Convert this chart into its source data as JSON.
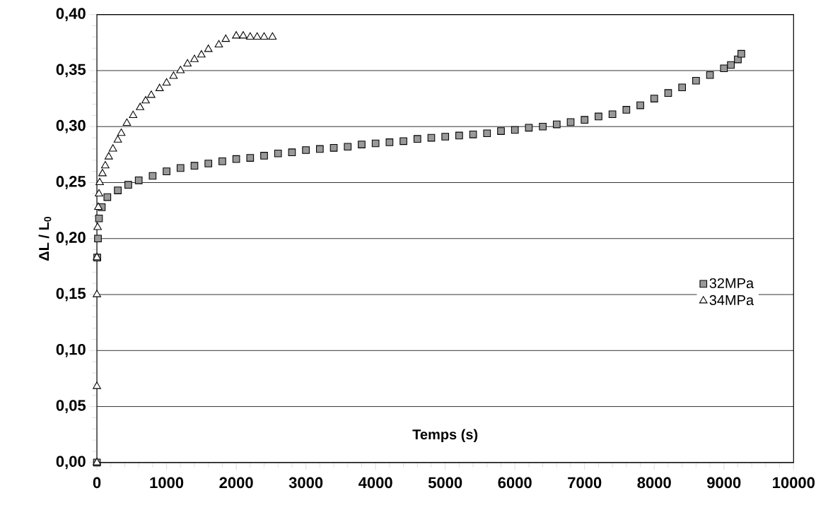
{
  "chart_data": {
    "type": "scatter",
    "xlabel": "Temps (s)",
    "ylabel": "ΔL / L$_{0}$",
    "xlim": [
      0,
      10000
    ],
    "xticks": [
      0,
      1000,
      2000,
      3000,
      4000,
      5000,
      6000,
      7000,
      8000,
      9000,
      10000
    ],
    "ylim": [
      0,
      0.4
    ],
    "yticks": [
      {
        "value": 0,
        "label": "0,00"
      },
      {
        "value": 0.05,
        "label": "0,05"
      },
      {
        "value": 0.1,
        "label": "0,10"
      },
      {
        "value": 0.15,
        "label": "0,15"
      },
      {
        "value": 0.2,
        "label": "0,20"
      },
      {
        "value": 0.25,
        "label": "0,25"
      },
      {
        "value": 0.3,
        "label": "0,30"
      },
      {
        "value": 0.35,
        "label": "0,35"
      },
      {
        "value": 0.4,
        "label": "0,40"
      }
    ],
    "grid": "y",
    "legend": "right",
    "series": [
      {
        "name": "32MPa",
        "color": "#999999",
        "marker": "square",
        "x": [
          0,
          5,
          15,
          30,
          70,
          150,
          300,
          450,
          600,
          800,
          1000,
          1200,
          1400,
          1600,
          1800,
          2000,
          2200,
          2400,
          2600,
          2800,
          3000,
          3200,
          3400,
          3600,
          3800,
          4000,
          4200,
          4400,
          4600,
          4800,
          5000,
          5200,
          5400,
          5600,
          5800,
          6000,
          6200,
          6400,
          6600,
          6800,
          7000,
          7200,
          7400,
          7600,
          7800,
          8000,
          8200,
          8400,
          8600,
          8800,
          9000,
          9100,
          9200,
          9250
        ],
        "values": [
          0,
          0.183,
          0.2,
          0.218,
          0.228,
          0.237,
          0.243,
          0.248,
          0.252,
          0.256,
          0.26,
          0.263,
          0.265,
          0.267,
          0.269,
          0.271,
          0.272,
          0.274,
          0.276,
          0.277,
          0.279,
          0.28,
          0.281,
          0.282,
          0.284,
          0.285,
          0.286,
          0.287,
          0.289,
          0.29,
          0.291,
          0.292,
          0.293,
          0.294,
          0.296,
          0.297,
          0.299,
          0.3,
          0.302,
          0.304,
          0.306,
          0.309,
          0.311,
          0.315,
          0.319,
          0.325,
          0.33,
          0.335,
          0.341,
          0.346,
          0.352,
          0.355,
          0.36,
          0.365
        ]
      },
      {
        "name": "34MPa",
        "color": "#ffffff",
        "marker": "triangle",
        "x": [
          0,
          0,
          0,
          0,
          10,
          20,
          30,
          40,
          80,
          120,
          170,
          230,
          300,
          350,
          430,
          520,
          620,
          700,
          780,
          900,
          1000,
          1100,
          1200,
          1300,
          1400,
          1500,
          1600,
          1750,
          1850,
          2000,
          2100,
          2200,
          2300,
          2400,
          2520
        ],
        "values": [
          0,
          0.068,
          0.15,
          0.183,
          0.21,
          0.228,
          0.24,
          0.25,
          0.258,
          0.265,
          0.273,
          0.28,
          0.288,
          0.294,
          0.303,
          0.31,
          0.317,
          0.323,
          0.328,
          0.334,
          0.339,
          0.345,
          0.35,
          0.356,
          0.36,
          0.364,
          0.369,
          0.373,
          0.378,
          0.381,
          0.381,
          0.38,
          0.38,
          0.38,
          0.38
        ]
      }
    ]
  }
}
